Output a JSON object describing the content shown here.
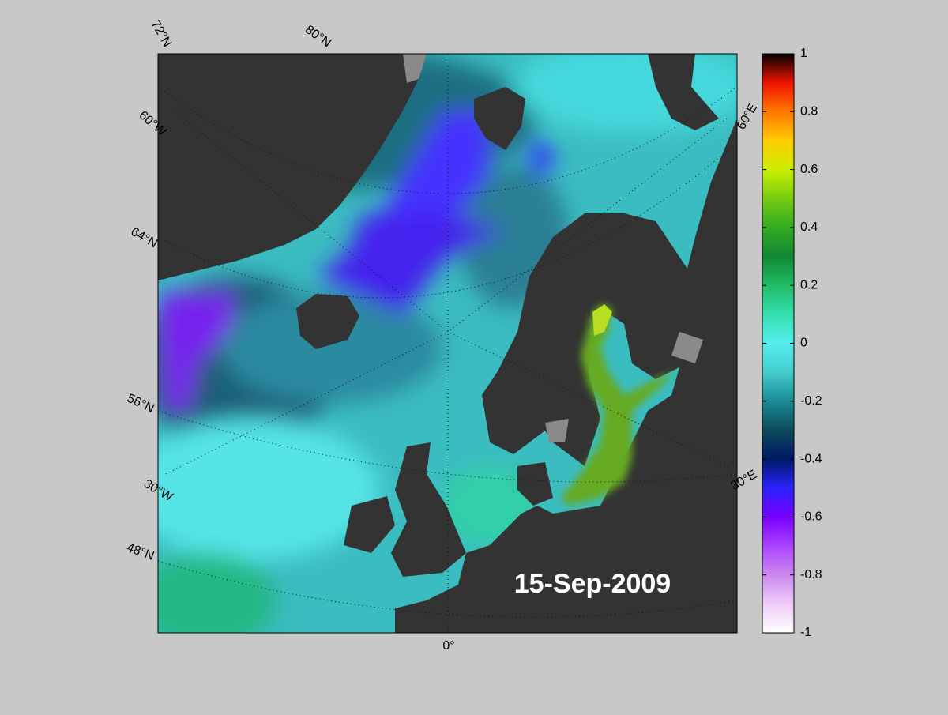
{
  "map": {
    "graticule_labels": [
      "72°N",
      "80°N",
      "60°W",
      "64°N",
      "56°N",
      "30°W",
      "48°N",
      "0°",
      "60°E",
      "30°E"
    ],
    "date": "15-Sep-2009",
    "colorbar": {
      "lim": [
        -1,
        1
      ],
      "ticks": [
        1,
        0.8,
        0.6,
        0.4,
        0.2,
        0,
        -0.2,
        -0.4,
        -0.6,
        -0.8,
        -1
      ],
      "colormap": [
        "#ffffff",
        "#eeccf8",
        "#cc88ee",
        "#aa44ff",
        "#7700ff",
        "#2a22ff",
        "#001a66",
        "#0d4a5a",
        "#1a8a96",
        "#44cccc",
        "#55eeee",
        "#33e0b0",
        "#22bb66",
        "#118833",
        "#33aa22",
        "#77cc11",
        "#ccee00",
        "#ffcc00",
        "#ff7700",
        "#ee1100",
        "#000000"
      ]
    }
  }
}
